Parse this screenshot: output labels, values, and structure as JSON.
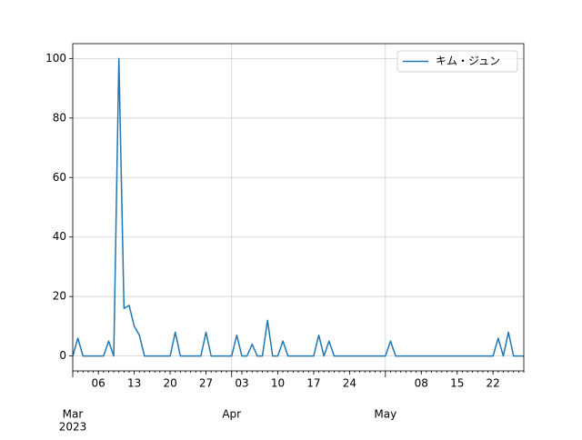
{
  "chart_data": {
    "type": "line",
    "x": [
      "2023-03-01",
      "2023-03-02",
      "2023-03-03",
      "2023-03-04",
      "2023-03-05",
      "2023-03-06",
      "2023-03-07",
      "2023-03-08",
      "2023-03-09",
      "2023-03-10",
      "2023-03-11",
      "2023-03-12",
      "2023-03-13",
      "2023-03-14",
      "2023-03-15",
      "2023-03-16",
      "2023-03-17",
      "2023-03-18",
      "2023-03-19",
      "2023-03-20",
      "2023-03-21",
      "2023-03-22",
      "2023-03-23",
      "2023-03-24",
      "2023-03-25",
      "2023-03-26",
      "2023-03-27",
      "2023-03-28",
      "2023-03-29",
      "2023-03-30",
      "2023-03-31",
      "2023-04-01",
      "2023-04-02",
      "2023-04-03",
      "2023-04-04",
      "2023-04-05",
      "2023-04-06",
      "2023-04-07",
      "2023-04-08",
      "2023-04-09",
      "2023-04-10",
      "2023-04-11",
      "2023-04-12",
      "2023-04-13",
      "2023-04-14",
      "2023-04-15",
      "2023-04-16",
      "2023-04-17",
      "2023-04-18",
      "2023-04-19",
      "2023-04-20",
      "2023-04-21",
      "2023-04-22",
      "2023-04-23",
      "2023-04-24",
      "2023-04-25",
      "2023-04-26",
      "2023-04-27",
      "2023-04-28",
      "2023-04-29",
      "2023-04-30",
      "2023-05-01",
      "2023-05-02",
      "2023-05-03",
      "2023-05-04",
      "2023-05-05",
      "2023-05-06",
      "2023-05-07",
      "2023-05-08",
      "2023-05-09",
      "2023-05-10",
      "2023-05-11",
      "2023-05-12",
      "2023-05-13",
      "2023-05-14",
      "2023-05-15",
      "2023-05-16",
      "2023-05-17",
      "2023-05-18",
      "2023-05-19",
      "2023-05-20",
      "2023-05-21",
      "2023-05-22",
      "2023-05-23",
      "2023-05-24",
      "2023-05-25",
      "2023-05-26",
      "2023-05-27",
      "2023-05-28"
    ],
    "series": [
      {
        "name": "キム・ジュン",
        "color": "#1f77b4",
        "values": [
          0,
          6,
          0,
          0,
          0,
          0,
          0,
          5,
          0,
          100,
          16,
          17,
          10,
          7,
          0,
          0,
          0,
          0,
          0,
          0,
          8,
          0,
          0,
          0,
          0,
          0,
          8,
          0,
          0,
          0,
          0,
          0,
          7,
          0,
          0,
          4,
          0,
          0,
          12,
          0,
          0,
          5,
          0,
          0,
          0,
          0,
          0,
          0,
          7,
          0,
          5,
          0,
          0,
          0,
          0,
          0,
          0,
          0,
          0,
          0,
          0,
          0,
          5,
          0,
          0,
          0,
          0,
          0,
          0,
          0,
          0,
          0,
          0,
          0,
          0,
          0,
          0,
          0,
          0,
          0,
          0,
          0,
          0,
          6,
          0,
          8,
          0,
          0,
          0
        ]
      }
    ],
    "xlim": [
      "2023-03-01",
      "2023-05-28"
    ],
    "xticks": [
      {
        "value": "2023-03-01",
        "label": "Mar",
        "sublabel": "2023"
      },
      {
        "value": "2023-03-06",
        "label": "06"
      },
      {
        "value": "2023-03-13",
        "label": "13"
      },
      {
        "value": "2023-03-20",
        "label": "20"
      },
      {
        "value": "2023-03-27",
        "label": "27"
      },
      {
        "value": "2023-04-01",
        "label": "Apr"
      },
      {
        "value": "2023-04-03",
        "label": "03"
      },
      {
        "value": "2023-04-10",
        "label": "10"
      },
      {
        "value": "2023-04-17",
        "label": "17"
      },
      {
        "value": "2023-04-24",
        "label": "24"
      },
      {
        "value": "2023-05-01",
        "label": "May"
      },
      {
        "value": "2023-05-08",
        "label": "08"
      },
      {
        "value": "2023-05-15",
        "label": "15"
      },
      {
        "value": "2023-05-22",
        "label": "22"
      }
    ],
    "ylim": [
      -5,
      105
    ],
    "yticks": [
      0,
      20,
      40,
      60,
      80,
      100
    ],
    "grid": true,
    "legend": "upper right"
  }
}
